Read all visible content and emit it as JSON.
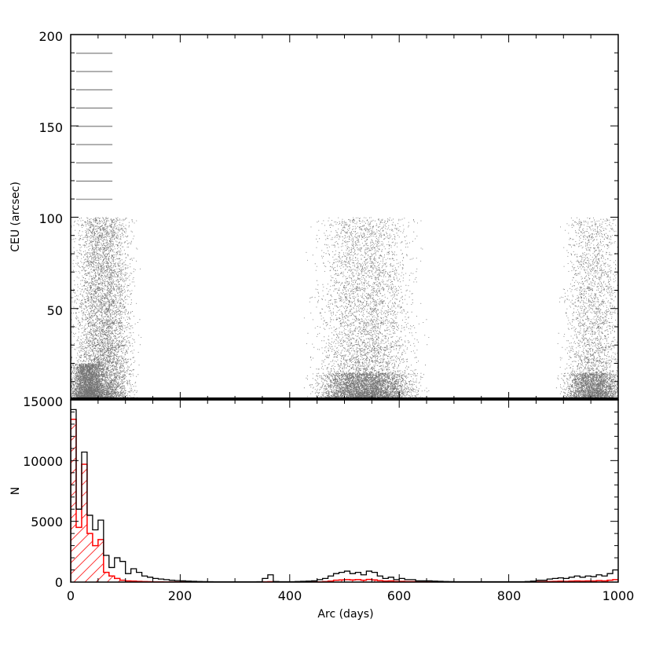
{
  "chart_data": [
    {
      "panel": "top",
      "type": "scatter",
      "xlabel": "",
      "ylabel": "CEU (arcsec)",
      "xlim": [
        0,
        1000
      ],
      "ylim": [
        0,
        200
      ],
      "y_ticks": [
        50,
        100,
        150,
        200
      ],
      "x_ticks": [
        0,
        200,
        400,
        600,
        800,
        1000
      ],
      "grid": false,
      "density_description_clusters": [
        {
          "x_center": 60,
          "x_spread": 45,
          "y_max": 100,
          "weight": 9000
        },
        {
          "x_center": 30,
          "x_spread": 25,
          "y_max": 20,
          "weight": 3000
        },
        {
          "x_center": 540,
          "x_spread": 75,
          "y_max": 100,
          "weight": 5500
        },
        {
          "x_center": 540,
          "x_spread": 75,
          "y_max": 15,
          "weight": 3500
        },
        {
          "x_center": 955,
          "x_spread": 45,
          "y_max": 100,
          "weight": 3000
        },
        {
          "x_center": 955,
          "x_spread": 45,
          "y_max": 15,
          "weight": 2200
        }
      ],
      "horizontal_bands": {
        "x_range": [
          10,
          75
        ],
        "y_values": [
          110,
          120,
          130,
          140,
          150,
          160,
          170,
          180,
          190
        ]
      }
    },
    {
      "panel": "bottom",
      "type": "bar",
      "xlabel": "Arc (days)",
      "ylabel": "N",
      "xlim": [
        0,
        1000
      ],
      "ylim": [
        0,
        15000
      ],
      "y_ticks": [
        0,
        5000,
        10000,
        15000
      ],
      "x_ticks": [
        0,
        200,
        400,
        600,
        800,
        1000
      ],
      "x_tick_labels": [
        "0",
        "200",
        "400",
        "600",
        "800",
        "1000"
      ],
      "bin_width": 10,
      "series": [
        {
          "name": "",
          "style": "step-outline",
          "color": "#000000",
          "values": [
            14200,
            6000,
            10700,
            5500,
            4300,
            5100,
            2200,
            1200,
            2000,
            1700,
            700,
            1100,
            800,
            500,
            400,
            300,
            250,
            200,
            150,
            120,
            100,
            80,
            60,
            50,
            40,
            30,
            20,
            20,
            20,
            20,
            20,
            20,
            20,
            20,
            30,
            300,
            600,
            50,
            30,
            30,
            30,
            50,
            60,
            80,
            100,
            200,
            300,
            500,
            700,
            800,
            900,
            700,
            800,
            600,
            900,
            800,
            500,
            300,
            400,
            200,
            300,
            200,
            200,
            100,
            100,
            100,
            80,
            60,
            50,
            40,
            30,
            30,
            30,
            30,
            30,
            30,
            30,
            30,
            30,
            30,
            30,
            30,
            30,
            50,
            80,
            150,
            150,
            250,
            300,
            350,
            300,
            400,
            500,
            400,
            500,
            450,
            600,
            500,
            700,
            1000
          ]
        },
        {
          "name": "",
          "style": "hatched-fill",
          "color": "#ff0000",
          "values": [
            13400,
            4500,
            9700,
            4000,
            3000,
            3500,
            800,
            500,
            300,
            150,
            100,
            80,
            60,
            40,
            30,
            20,
            20,
            10,
            10,
            10,
            10,
            10,
            10,
            10,
            10,
            10,
            10,
            10,
            10,
            10,
            10,
            10,
            10,
            10,
            10,
            20,
            30,
            10,
            10,
            10,
            10,
            10,
            10,
            10,
            10,
            20,
            40,
            80,
            150,
            180,
            200,
            180,
            200,
            150,
            220,
            180,
            120,
            80,
            100,
            50,
            60,
            40,
            40,
            20,
            20,
            20,
            10,
            10,
            10,
            10,
            10,
            10,
            10,
            10,
            10,
            10,
            10,
            10,
            10,
            10,
            10,
            10,
            10,
            10,
            20,
            30,
            30,
            50,
            60,
            70,
            60,
            80,
            100,
            80,
            100,
            90,
            120,
            100,
            150,
            200
          ]
        }
      ]
    }
  ],
  "labels": {
    "top_y_0": "15000",
    "top_y_50": "50",
    "top_y_100": "100",
    "top_y_150": "150",
    "top_y_200": "200",
    "bot_y_0": "0",
    "bot_y_5000": "5000",
    "bot_y_10000": "10000",
    "x_0": "0",
    "x_200": "200",
    "x_400": "400",
    "x_600": "600",
    "x_800": "800",
    "x_1000": "1000",
    "top_ylabel": "CEU (arcsec)",
    "bot_ylabel": "N",
    "xlabel": "Arc (days)"
  }
}
